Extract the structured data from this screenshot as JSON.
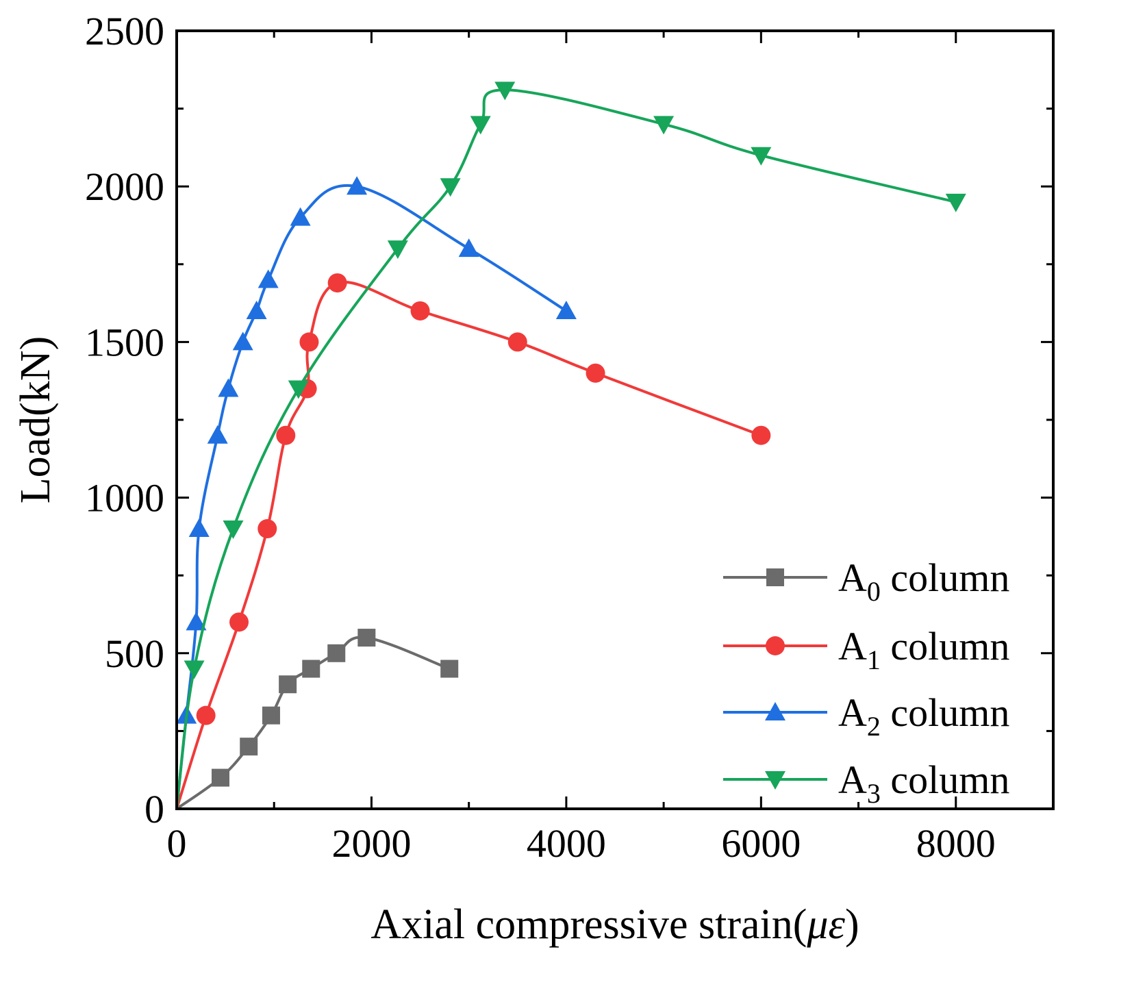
{
  "chart_data": {
    "type": "line",
    "title": "",
    "xlabel": "Axial compressive strain(",
    "xlabel_symbol": "με",
    "xlabel_close": ")",
    "ylabel": "Load(kN)",
    "xlim": [
      0,
      9000
    ],
    "ylim": [
      0,
      2500
    ],
    "xticks": [
      0,
      2000,
      4000,
      6000,
      8000
    ],
    "xticks_minor": [
      1000,
      3000,
      5000,
      7000,
      9000
    ],
    "yticks": [
      0,
      500,
      1000,
      1500,
      2000,
      2500
    ],
    "yticks_minor": [
      250,
      750,
      1250,
      1750,
      2250
    ],
    "legend_position": "bottom-right",
    "series": [
      {
        "name": "A0 column",
        "label_main": "A",
        "label_sub": "0",
        "label_rest": " column",
        "color": "#6b6b6b",
        "marker": "square",
        "points": [
          [
            0,
            0
          ],
          [
            450,
            100
          ],
          [
            740,
            200
          ],
          [
            970,
            300
          ],
          [
            1140,
            400
          ],
          [
            1380,
            450
          ],
          [
            1640,
            500
          ],
          [
            1950,
            550
          ],
          [
            2800,
            450
          ]
        ]
      },
      {
        "name": "A1 column",
        "label_main": "A",
        "label_sub": "1",
        "label_rest": " column",
        "color": "#f03a3a",
        "marker": "circle",
        "points": [
          [
            0,
            0
          ],
          [
            300,
            300
          ],
          [
            640,
            600
          ],
          [
            930,
            900
          ],
          [
            1120,
            1200
          ],
          [
            1340,
            1350
          ],
          [
            1360,
            1500
          ],
          [
            1650,
            1690
          ],
          [
            2500,
            1600
          ],
          [
            3500,
            1500
          ],
          [
            4300,
            1400
          ],
          [
            6000,
            1200
          ]
        ]
      },
      {
        "name": "A2 column",
        "label_main": "A",
        "label_sub": "2",
        "label_rest": " column",
        "color": "#1f6fe0",
        "marker": "triangle-up",
        "points": [
          [
            0,
            0
          ],
          [
            100,
            300
          ],
          [
            200,
            600
          ],
          [
            230,
            900
          ],
          [
            420,
            1200
          ],
          [
            530,
            1350
          ],
          [
            680,
            1500
          ],
          [
            820,
            1600
          ],
          [
            940,
            1700
          ],
          [
            1270,
            1900
          ],
          [
            1850,
            2000
          ],
          [
            3000,
            1800
          ],
          [
            4000,
            1600
          ]
        ]
      },
      {
        "name": "A3 column",
        "label_main": "A",
        "label_sub": "3",
        "label_rest": " column",
        "color": "#17a55a",
        "marker": "triangle-down",
        "points": [
          [
            0,
            0
          ],
          [
            180,
            450
          ],
          [
            580,
            900
          ],
          [
            1250,
            1350
          ],
          [
            2270,
            1800
          ],
          [
            2810,
            2000
          ],
          [
            3120,
            2200
          ],
          [
            3370,
            2310
          ],
          [
            5000,
            2200
          ],
          [
            6000,
            2100
          ],
          [
            8000,
            1950
          ]
        ]
      }
    ]
  }
}
